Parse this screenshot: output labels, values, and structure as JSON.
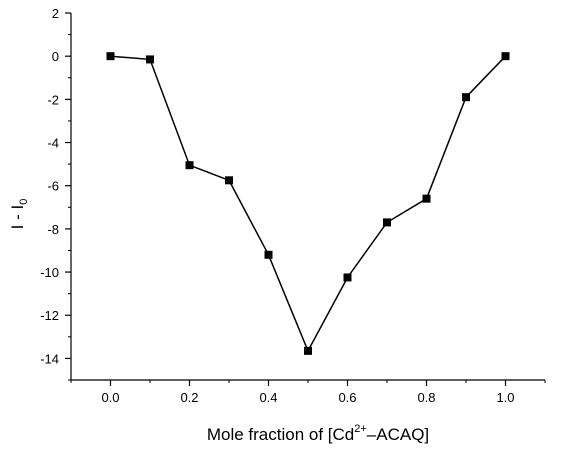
{
  "chart_data": {
    "type": "line",
    "title": "",
    "xlabel": {
      "main": "Mole fraction of [Cd",
      "sup": "2+",
      "rest": "–ACAQ]"
    },
    "ylabel": {
      "main": "I - I",
      "sub": "0"
    },
    "xlim": [
      -0.1,
      1.1
    ],
    "ylim": [
      -15,
      2
    ],
    "x_ticks": [
      0.0,
      0.2,
      0.4,
      0.6,
      0.8,
      1.0
    ],
    "x_tick_labels": [
      "0.0",
      "0.2",
      "0.4",
      "0.6",
      "0.8",
      "1.0"
    ],
    "y_ticks": [
      2,
      0,
      -2,
      -4,
      -6,
      -8,
      -10,
      -12,
      -14
    ],
    "y_tick_labels": [
      "2",
      "0",
      "-2",
      "-4",
      "-6",
      "-8",
      "-10",
      "-12",
      "-14"
    ],
    "grid": false,
    "legend": "none",
    "series": [
      {
        "marker": "square",
        "color": "#000000",
        "x": [
          0.0,
          0.1,
          0.2,
          0.3,
          0.4,
          0.5,
          0.6,
          0.7,
          0.8,
          0.9,
          1.0
        ],
        "y": [
          0.0,
          -0.15,
          -5.05,
          -5.75,
          -9.2,
          -13.65,
          -10.25,
          -7.7,
          -6.6,
          -1.9,
          0.0
        ]
      }
    ]
  }
}
